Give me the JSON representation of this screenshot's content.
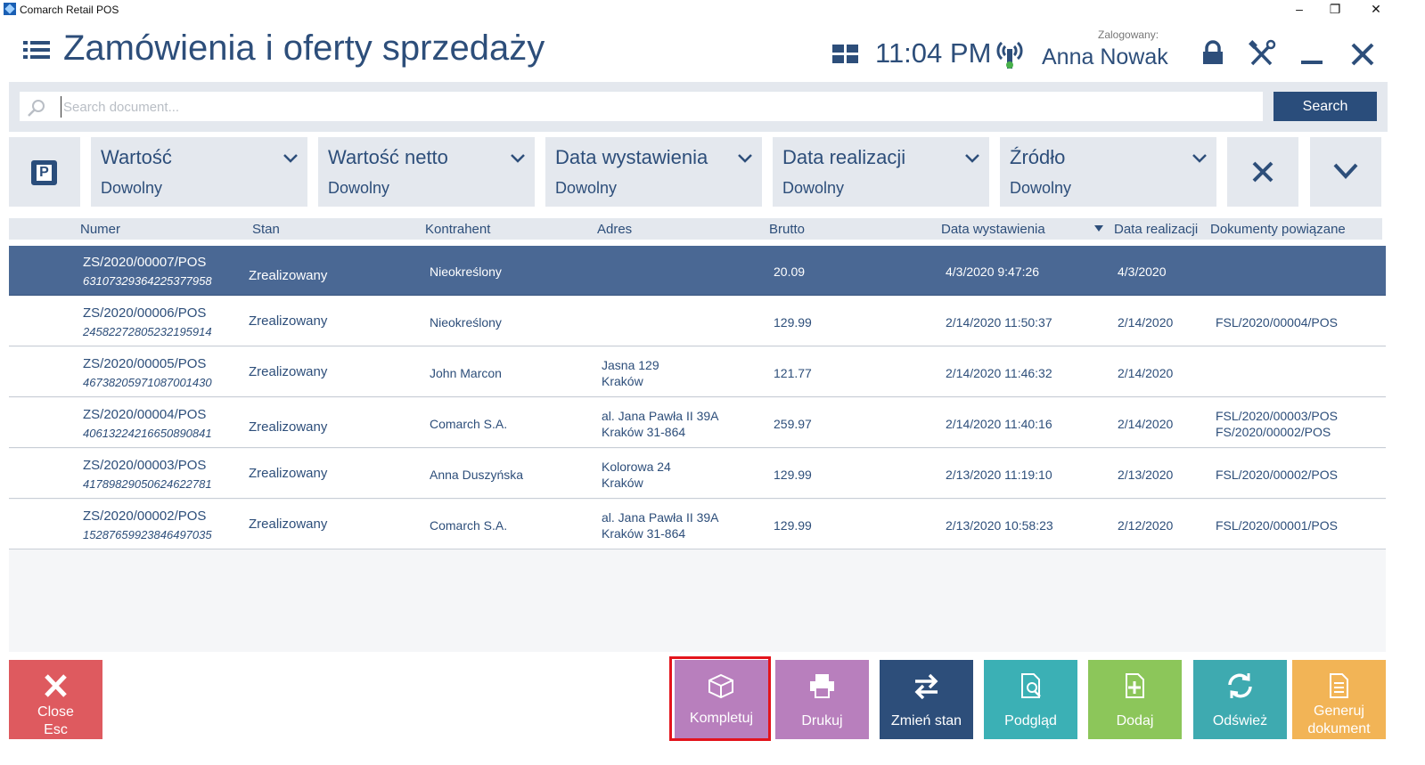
{
  "window": {
    "title": "Comarch Retail POS",
    "controls": [
      "–",
      "❐",
      "✕"
    ]
  },
  "header": {
    "title": "Zamówienia i oferty sprzedaży",
    "clock": "11:04 PM",
    "logged_label": "Zalogowany:",
    "user": "Anna Nowak"
  },
  "search": {
    "placeholder": "Search document...",
    "value": "",
    "button": "Search"
  },
  "filters": [
    {
      "label": "Wartość",
      "value": "Dowolny"
    },
    {
      "label": "Wartość netto",
      "value": "Dowolny"
    },
    {
      "label": "Data wystawienia",
      "value": "Dowolny"
    },
    {
      "label": "Data realizacji",
      "value": "Dowolny"
    },
    {
      "label": "Źródło",
      "value": "Dowolny"
    }
  ],
  "columns": [
    "Numer",
    "Stan",
    "Kontrahent",
    "Adres",
    "Brutto",
    "Data wystawienia",
    "Data realizacji",
    "Dokumenty powiązane"
  ],
  "rows": [
    {
      "numer": "ZS/2020/00007/POS",
      "code": "6310732936422537795​8",
      "stan": "Zrealizowany",
      "kontrahent": "Nieokreślony",
      "adres1": "",
      "adres2": "",
      "brutto": "20.09",
      "data_wyst": "4/3/2020 9:47:26",
      "data_real": "4/3/2020",
      "dok1": "",
      "dok2": ""
    },
    {
      "numer": "ZS/2020/00006/POS",
      "code": "24582272805232195914",
      "stan": "Zrealizowany",
      "kontrahent": "Nieokreślony",
      "adres1": "",
      "adres2": "",
      "brutto": "129.99",
      "data_wyst": "2/14/2020 11:50:37",
      "data_real": "2/14/2020",
      "dok1": "FSL/2020/00004/POS",
      "dok2": ""
    },
    {
      "numer": "ZS/2020/00005/POS",
      "code": "46738205971087001430",
      "stan": "Zrealizowany",
      "kontrahent": "John Marcon",
      "adres1": "Jasna 129",
      "adres2": "Kraków",
      "brutto": "121.77",
      "data_wyst": "2/14/2020 11:46:32",
      "data_real": "2/14/2020",
      "dok1": "",
      "dok2": ""
    },
    {
      "numer": "ZS/2020/00004/POS",
      "code": "40613224216650890841",
      "stan": "Zrealizowany",
      "kontrahent": "Comarch S.A.",
      "adres1": "al. Jana Pawła II 39A",
      "adres2": "Kraków 31-864",
      "brutto": "259.97",
      "data_wyst": "2/14/2020 11:40:16",
      "data_real": "2/14/2020",
      "dok1": "FSL/2020/00003/POS",
      "dok2": "FS/2020/00002/POS"
    },
    {
      "numer": "ZS/2020/00003/POS",
      "code": "41789829050624622781",
      "stan": "Zrealizowany",
      "kontrahent": "Anna Duszyńska",
      "adres1": "Kolorowa 24",
      "adres2": "Kraków",
      "brutto": "129.99",
      "data_wyst": "2/13/2020 11:19:10",
      "data_real": "2/13/2020",
      "dok1": "FSL/2020/00002/POS",
      "dok2": ""
    },
    {
      "numer": "ZS/2020/00002/POS",
      "code": "15287659923846497035",
      "stan": "Zrealizowany",
      "kontrahent": "Comarch S.A.",
      "adres1": "al. Jana Pawła II 39A",
      "adres2": "Kraków 31-864",
      "brutto": "129.99",
      "data_wyst": "2/13/2020 10:58:23",
      "data_real": "2/12/2020",
      "dok1": "FSL/2020/00001/POS",
      "dok2": ""
    }
  ],
  "buttons": {
    "close": {
      "line1": "Close",
      "line2": "Esc",
      "color": "#de5a5f",
      "icon": "close-icon"
    },
    "kompletuj": {
      "label": "Kompletuj",
      "color": "#b87fbd",
      "icon": "box-icon"
    },
    "drukuj": {
      "label": "Drukuj",
      "color": "#b87fbd",
      "icon": "printer-icon"
    },
    "zmien_stan": {
      "label": "Zmień stan",
      "color": "#2d4e7a",
      "icon": "swap-arrows-icon"
    },
    "podglad": {
      "label": "Podgląd",
      "color": "#3bb0b5",
      "icon": "preview-document-icon"
    },
    "dodaj": {
      "label": "Dodaj",
      "color": "#8cc65a",
      "icon": "add-document-icon"
    },
    "odswiez": {
      "label": "Odśwież",
      "color": "#3eaab0",
      "icon": "refresh-icon"
    },
    "generuj": {
      "line1": "Generuj",
      "line2": "dokument",
      "color": "#f2b456",
      "icon": "generate-document-icon"
    }
  },
  "selected_row": 0
}
